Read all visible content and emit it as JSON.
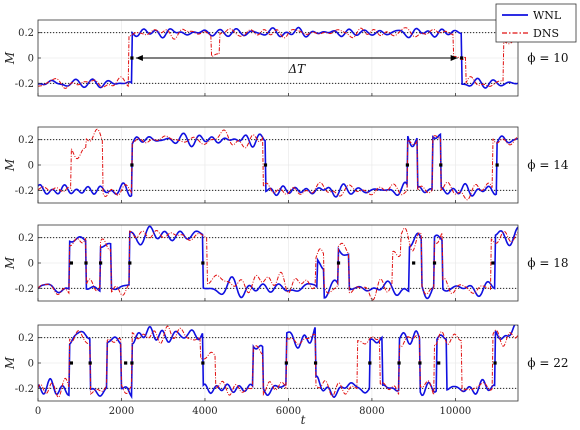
{
  "chart_data": {
    "type": "line",
    "xlabel": "t",
    "ylabel": "M",
    "xlim": [
      0,
      11500
    ],
    "ylim": [
      -0.3,
      0.3
    ],
    "xticks": [
      0,
      2000,
      4000,
      6000,
      8000,
      10000
    ],
    "yticks": [
      -0.2,
      0,
      0.2
    ],
    "reference_lines": [
      0.2,
      -0.2
    ],
    "legend": {
      "placement": "top-right",
      "entries": [
        "WNL",
        "DNS"
      ]
    },
    "series_style": {
      "WNL": {
        "color": "#1010e0",
        "dash": "solid"
      },
      "DNS": {
        "color": "#e01010",
        "dash": "dash-dot"
      }
    },
    "annotation": {
      "panel": 0,
      "text": "ΔT",
      "from_x": 2250,
      "to_x": 10150,
      "y": 0
    },
    "panels": [
      {
        "label": "ϕ = 10",
        "switch_points": [
          2250,
          10150
        ],
        "series": [
          {
            "name": "WNL",
            "color": "#1010e0",
            "states": [
              [
                0,
                -0.2
              ],
              [
                2250,
                0.2
              ],
              [
                10150,
                -0.2
              ]
            ],
            "amp": 0.028,
            "seed": 11
          },
          {
            "name": "DNS",
            "color": "#e01010",
            "states": [
              [
                0,
                -0.2
              ],
              [
                2180,
                0.2
              ],
              [
                4150,
                0.03
              ],
              [
                4350,
                0.2
              ],
              [
                9950,
                0.02
              ],
              [
                10250,
                -0.2
              ],
              [
                11150,
                0.12
              ]
            ],
            "amp": 0.032,
            "seed": 12
          }
        ]
      },
      {
        "label": "ϕ = 14",
        "switch_points": [
          2250,
          5450,
          8850,
          9650,
          11000
        ],
        "series": [
          {
            "name": "WNL",
            "color": "#1010e0",
            "states": [
              [
                0,
                -0.2
              ],
              [
                2250,
                0.2
              ],
              [
                5450,
                -0.2
              ],
              [
                8850,
                0.2
              ],
              [
                9100,
                -0.2
              ],
              [
                9450,
                0.22
              ],
              [
                9650,
                -0.2
              ],
              [
                11000,
                0.2
              ]
            ],
            "amp": 0.04,
            "seed": 21
          },
          {
            "name": "DNS",
            "color": "#e01010",
            "states": [
              [
                0,
                -0.2
              ],
              [
                800,
                0.12
              ],
              [
                1150,
                0.2
              ],
              [
                1550,
                -0.2
              ],
              [
                2250,
                0.2
              ],
              [
                5400,
                -0.2
              ],
              [
                8850,
                0.2
              ],
              [
                9100,
                -0.2
              ],
              [
                9450,
                0.22
              ],
              [
                9650,
                -0.2
              ],
              [
                10900,
                0.2
              ]
            ],
            "amp": 0.045,
            "seed": 22
          }
        ]
      },
      {
        "label": "ϕ = 18",
        "switch_points": [
          800,
          1150,
          1500,
          2200,
          3950,
          7200,
          9000,
          9500,
          10900
        ],
        "series": [
          {
            "name": "WNL",
            "color": "#1010e0",
            "states": [
              [
                0,
                -0.2
              ],
              [
                750,
                0.18
              ],
              [
                1150,
                -0.2
              ],
              [
                1500,
                0.15
              ],
              [
                1750,
                -0.2
              ],
              [
                2200,
                0.22
              ],
              [
                3950,
                -0.2
              ],
              [
                6700,
                0.02
              ],
              [
                6850,
                -0.2
              ],
              [
                7200,
                0.08
              ],
              [
                7450,
                -0.2
              ],
              [
                8900,
                0.15
              ],
              [
                9200,
                -0.2
              ],
              [
                9500,
                0.18
              ],
              [
                9700,
                -0.2
              ],
              [
                10950,
                0.22
              ]
            ],
            "amp": 0.05,
            "seed": 31
          },
          {
            "name": "DNS",
            "color": "#e01010",
            "states": [
              [
                0,
                -0.2
              ],
              [
                750,
                0.18
              ],
              [
                1150,
                -0.2
              ],
              [
                1500,
                0.15
              ],
              [
                1750,
                -0.2
              ],
              [
                2200,
                0.22
              ],
              [
                4050,
                -0.15
              ],
              [
                6650,
                0.05
              ],
              [
                6850,
                -0.2
              ],
              [
                7200,
                0.1
              ],
              [
                7450,
                -0.2
              ],
              [
                8500,
                0.05
              ],
              [
                8700,
                0.2
              ],
              [
                9200,
                -0.2
              ],
              [
                9500,
                0.18
              ],
              [
                9700,
                -0.2
              ],
              [
                10850,
                0.2
              ]
            ],
            "amp": 0.055,
            "seed": 32
          }
        ]
      },
      {
        "label": "ϕ = 22",
        "switch_points": [
          800,
          1250,
          2100,
          2250,
          3950,
          5950,
          6650,
          7950,
          8650,
          9150,
          9600,
          10950
        ],
        "series": [
          {
            "name": "WNL",
            "color": "#1010e0",
            "states": [
              [
                0,
                -0.2
              ],
              [
                750,
                0.2
              ],
              [
                1250,
                -0.2
              ],
              [
                1650,
                0.15
              ],
              [
                2000,
                -0.2
              ],
              [
                2250,
                0.22
              ],
              [
                3950,
                -0.2
              ],
              [
                5150,
                0.12
              ],
              [
                5400,
                -0.2
              ],
              [
                5950,
                0.2
              ],
              [
                6650,
                -0.2
              ],
              [
                7950,
                0.18
              ],
              [
                8250,
                -0.2
              ],
              [
                8650,
                0.2
              ],
              [
                9150,
                -0.2
              ],
              [
                9550,
                0.2
              ],
              [
                9800,
                -0.2
              ],
              [
                10950,
                0.24
              ]
            ],
            "amp": 0.05,
            "seed": 41
          },
          {
            "name": "DNS",
            "color": "#e01010",
            "states": [
              [
                0,
                -0.2
              ],
              [
                750,
                0.2
              ],
              [
                1250,
                -0.2
              ],
              [
                1650,
                0.15
              ],
              [
                2000,
                -0.2
              ],
              [
                2250,
                0.22
              ],
              [
                3900,
                0.05
              ],
              [
                4250,
                -0.2
              ],
              [
                5150,
                0.12
              ],
              [
                5400,
                -0.2
              ],
              [
                5950,
                0.2
              ],
              [
                6650,
                -0.2
              ],
              [
                7650,
                0.18
              ],
              [
                8200,
                -0.2
              ],
              [
                8650,
                0.2
              ],
              [
                9150,
                -0.2
              ],
              [
                9500,
                0.2
              ],
              [
                10150,
                -0.2
              ],
              [
                10900,
                0.22
              ]
            ],
            "amp": 0.055,
            "seed": 42
          }
        ]
      }
    ]
  }
}
